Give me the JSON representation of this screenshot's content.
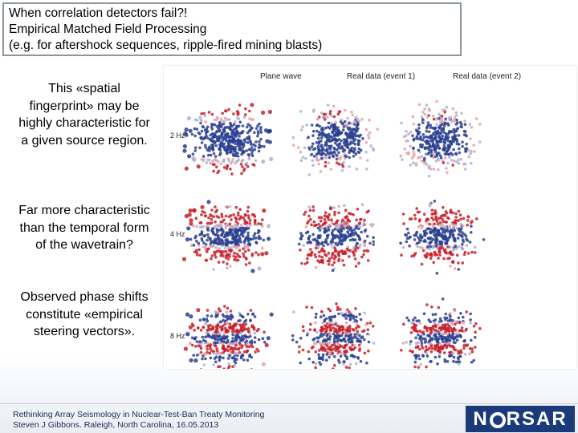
{
  "title": {
    "line1": "When correlation detectors fail?!",
    "line2": "Empirical Matched Field Processing",
    "line3": "(e.g. for aftershock sequences, ripple-fired mining blasts)"
  },
  "side": {
    "para1": "This «spatial fingerprint» may be highly characteristic for a given source region.",
    "para2": "Far more characteristic than the temporal form of the wavetrain?",
    "para3": "Observed phase shifts constitute «empirical steering vectors»."
  },
  "figure": {
    "columns": [
      "Plane wave",
      "Real data (event 1)",
      "Real data (event 2)"
    ],
    "rows": [
      "2 Hz",
      "4 Hz",
      "8 Hz"
    ],
    "colors": {
      "red": "#c8202a",
      "blue": "#2a3f8f",
      "pale_red": "#e6a3a8",
      "pale_blue": "#a9b3d6"
    }
  },
  "footer": {
    "line1": "Rethinking Array Seismology in Nuclear-Test-Ban Treaty Monitoring",
    "line2": "Steven J Gibbons. Raleigh, North Carolina, 16.05.2013"
  },
  "logo": {
    "text": "NORSAR",
    "left": "N",
    "right": "RSAR"
  }
}
